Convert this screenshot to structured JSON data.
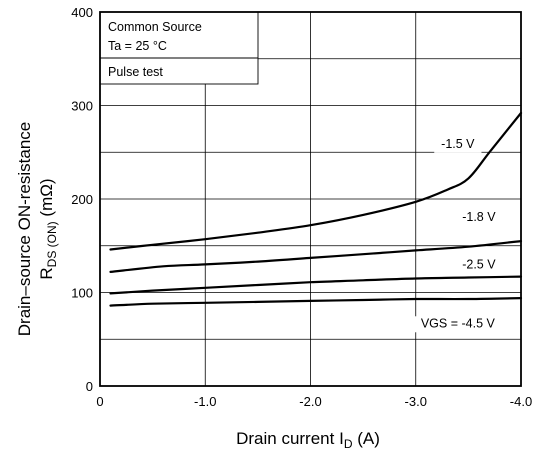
{
  "chart_data": {
    "type": "line",
    "ylabel": {
      "line1": "Drain–source ON-resistance",
      "r_main": "R",
      "r_sub": "DS (ON)",
      "unit": "(mΩ)"
    },
    "xlabel": {
      "main": "Drain current",
      "symbol": "I",
      "symbol_sub": "D",
      "unit": "(A)"
    },
    "conditions": [
      "Common Source",
      "Ta = 25 °C",
      "Pulse test"
    ],
    "xlim": [
      0,
      -4.0
    ],
    "ylim": [
      0,
      400
    ],
    "x_ticks": [
      {
        "value": 0,
        "label": "0"
      },
      {
        "value": -1.0,
        "label": "-1.0"
      },
      {
        "value": -2.0,
        "label": "-2.0"
      },
      {
        "value": -3.0,
        "label": "-3.0"
      },
      {
        "value": -4.0,
        "label": "-4.0"
      }
    ],
    "y_ticks": [
      {
        "value": 0,
        "label": "0"
      },
      {
        "value": 100,
        "label": "100"
      },
      {
        "value": 200,
        "label": "200"
      },
      {
        "value": 300,
        "label": "300"
      },
      {
        "value": 400,
        "label": "400"
      }
    ],
    "grid": true,
    "series": [
      {
        "name": "-1.5 V",
        "x": [
          -0.1,
          -0.5,
          -1.0,
          -1.5,
          -2.0,
          -2.5,
          -3.0,
          -3.3,
          -3.5,
          -3.7,
          -4.0
        ],
        "y": [
          146,
          151,
          157,
          164,
          172,
          183,
          197,
          210,
          222,
          250,
          292
        ]
      },
      {
        "name": "-1.8 V",
        "x": [
          -0.1,
          -0.6,
          -1.0,
          -1.5,
          -2.0,
          -2.5,
          -3.0,
          -3.5,
          -4.0
        ],
        "y": [
          122,
          128,
          130,
          133,
          137,
          141,
          145,
          149,
          155
        ]
      },
      {
        "name": "-2.5 V",
        "x": [
          -0.1,
          -0.5,
          -1.0,
          -1.5,
          -2.0,
          -2.5,
          -3.0,
          -3.5,
          -4.0
        ],
        "y": [
          99,
          102,
          105,
          108,
          111,
          113,
          115,
          116,
          117
        ]
      },
      {
        "name": "VGS = -4.5 V",
        "x": [
          -0.1,
          -0.5,
          -1.0,
          -1.5,
          -2.0,
          -2.5,
          -3.0,
          -3.5,
          -4.0
        ],
        "y": [
          86,
          88,
          89,
          90,
          91,
          92,
          93,
          93,
          94
        ]
      }
    ],
    "series_labels": [
      {
        "text": "-1.5 V",
        "at": [
          -3.4,
          258
        ]
      },
      {
        "text": "-1.8 V",
        "at": [
          -3.6,
          180
        ]
      },
      {
        "text": "-2.5 V",
        "at": [
          -3.6,
          129
        ]
      },
      {
        "text": "VGS = -4.5 V",
        "at": [
          -3.4,
          66
        ]
      }
    ]
  }
}
